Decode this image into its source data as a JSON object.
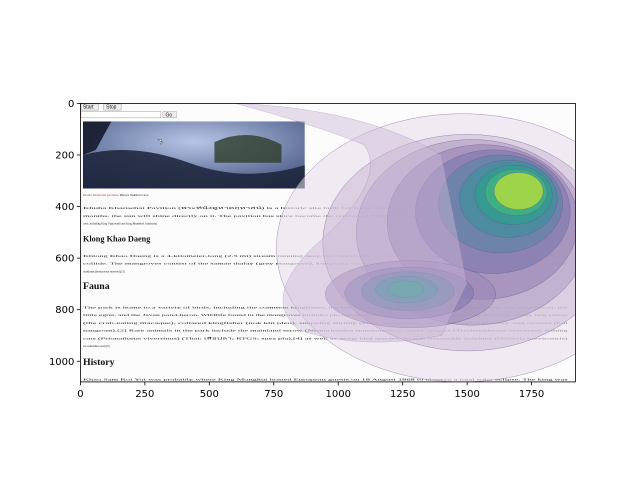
{
  "chart_data": {
    "type": "heatmap",
    "title": "",
    "xlabel": "",
    "ylabel": "",
    "xlim": [
      0,
      1920
    ],
    "ylim": [
      1080,
      0
    ],
    "x_ticks": [
      0,
      250,
      500,
      750,
      1000,
      1250,
      1500,
      1750
    ],
    "y_ticks": [
      0,
      200,
      400,
      600,
      800,
      1000
    ],
    "colormap": "viridis",
    "grid": false,
    "density_peaks": [
      {
        "x": 1700,
        "y": 340,
        "level": "high"
      },
      {
        "x": 1260,
        "y": 720,
        "level": "medium"
      }
    ]
  },
  "page": {
    "buttons": {
      "start": "Start",
      "stop": "Stop",
      "go": "Go"
    },
    "caption_link": "Khaho Khanohat pavilion",
    "caption_rest": ", Phraya Nakhon Cave",
    "paragraphs": [
      {
        "y": 410,
        "text": "Khuha Kharuehat Pavilion (พระที่นั่งคูหาคฤหาสน์) is a historic site built for King Chulalongkorn's visit in 1890. At certain times, in some"
      },
      {
        "y": 440,
        "text": "months, the sun will shine directly on it. The pavilion has since become the symbol of Prachuap Khiri Khan Province. Later kings who visited the"
      },
      {
        "y": 470,
        "text": "cave, including King Vajiravudh and King Bhumibol Adulyadej."
      },
      {
        "y": 595,
        "text": "Khlong Khao Daeng is a 4-kilometer-long (2.5 mi) stream running deep into mangrove forests at this end and at its mouth freshwater and seawater"
      },
      {
        "y": 625,
        "text": "collide. The mangroves consist of the samae thalay (grey mangrove), kongkang bai lek (few mangroves), kongkang bai yai (red mangroves), and"
      },
      {
        "y": 655,
        "text": "chakhram (herbaceous seaweed).[3]"
      },
      {
        "y": 795,
        "text": "The park is home to a variety of birds, including the common kingfisher, the black-capped kingfisher, the collared kingfisher, the little heron, the"
      },
      {
        "y": 825,
        "text": "little egret, and the Javan pond-heron. Wildlife found in the mangroves includes plo tein (Boleophthalmus boddarti), samae thalay (Bradley crabs), ling samae"
      },
      {
        "y": 855,
        "text": "(the crab-eating macaque), collared kingfisher (nok kin pleo), snapping shrimp (kung deed khan), and oysters (hoi khaem), and oysters (hoi"
      },
      {
        "y": 885,
        "text": "nangrom).[2] Rare animals in the park include the mainland serow (Nemorhaedus sumatraensis), dusky langurs (Trachypithecus obscurus), fishing"
      },
      {
        "y": 915,
        "text": "cats (Prionailurus viverrinus) (Thai: เสือปลา; RTGS: suea pla),[4] as well as many bird species. At sea, Irrawaddy dolphins (Orcaella brevirostris)"
      },
      {
        "y": 945,
        "text": "are sometimes seen.[6]"
      },
      {
        "y": 1075,
        "text": "Khao Sam Roi Yot was probably where King Mongkut hosted European guests on 18 August 1868 to observe a total solar eclipse. The king was"
      }
    ],
    "headings": [
      {
        "y": 535,
        "text": "Klong Khao Daeng",
        "size": 32
      },
      {
        "y": 720,
        "text": "Fauna",
        "size": 38
      },
      {
        "y": 1015,
        "text": "History",
        "size": 38
      }
    ]
  }
}
